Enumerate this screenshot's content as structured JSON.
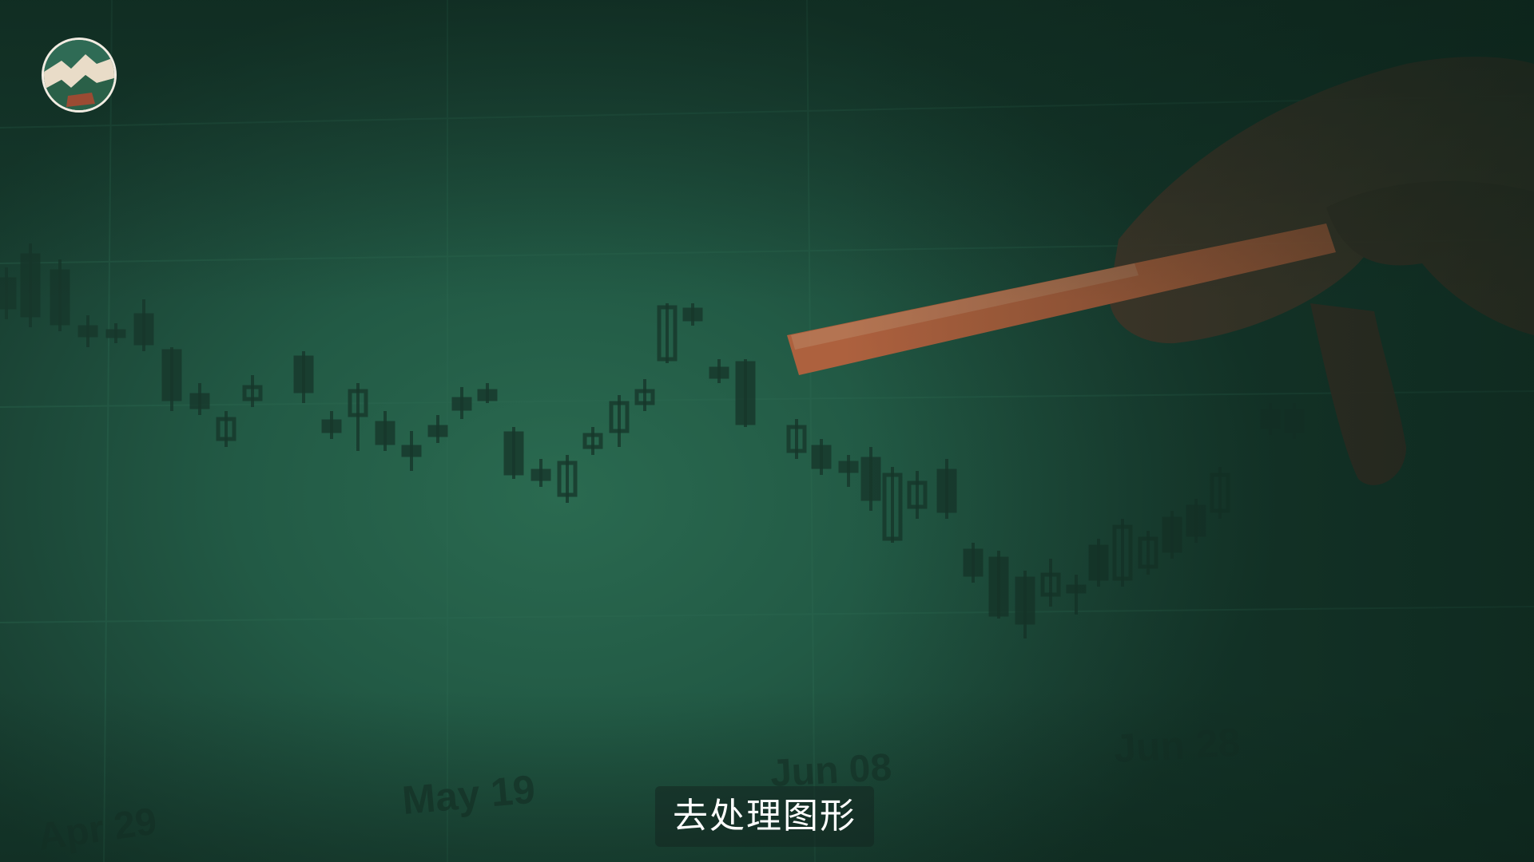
{
  "subtitle": "去处理图形",
  "logo_icon": "mountain-logo-icon",
  "colors": {
    "tint": "#225a45",
    "candle": "#17372b",
    "pen": "#b9623e",
    "hand": "#4a3a2c"
  },
  "chart_data": {
    "type": "candlestick",
    "x_tick_labels": [
      "Apr 29",
      "May 19",
      "Jun 08",
      "Jun 28"
    ]
  }
}
